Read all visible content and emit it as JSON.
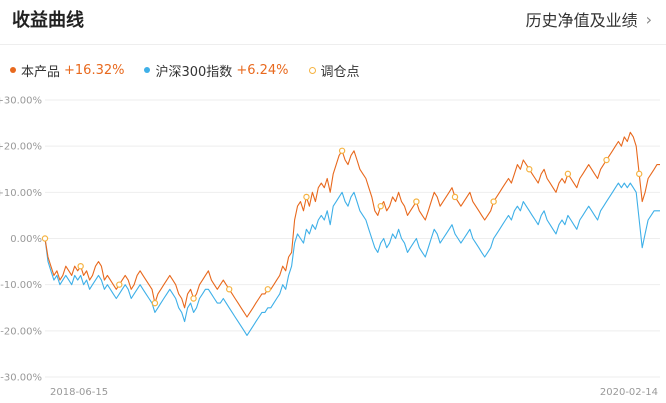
{
  "header": {
    "title": "收益曲线",
    "link_label": "历史净值及业绩"
  },
  "legend": [
    {
      "name": "本产品",
      "value": "+16.32%",
      "color": "#e8691e"
    },
    {
      "name": "沪深300指数",
      "value": "+6.24%",
      "color": "#3fb0e8"
    },
    {
      "name": "调仓点",
      "color": "#f5b342"
    }
  ],
  "chart_data": {
    "type": "line",
    "y_ticks": [
      "+30.00%",
      "+20.00%",
      "+10.00%",
      "0.00%",
      "-10.00%",
      "-20.00%",
      "-30.00%"
    ],
    "ylim": [
      -30,
      30
    ],
    "x_tick_labels": [
      "2018-06-15",
      "2020-02-14"
    ],
    "grid": true,
    "series": [
      {
        "name": "本产品",
        "color": "#e8691e",
        "values": [
          0,
          -4,
          -6,
          -8,
          -7,
          -9,
          -8,
          -6,
          -7,
          -8,
          -6,
          -7,
          -6,
          -8,
          -7,
          -9,
          -8,
          -6,
          -5,
          -6,
          -9,
          -8,
          -9,
          -10,
          -11,
          -10,
          -9,
          -8,
          -9,
          -11,
          -10,
          -8,
          -7,
          -8,
          -9,
          -10,
          -11,
          -14,
          -12,
          -11,
          -10,
          -9,
          -8,
          -9,
          -10,
          -12,
          -13,
          -15,
          -12,
          -11,
          -13,
          -12,
          -10,
          -9,
          -8,
          -7,
          -9,
          -10,
          -11,
          -10,
          -9,
          -10,
          -11,
          -12,
          -13,
          -14,
          -15,
          -16,
          -17,
          -16,
          -15,
          -14,
          -13,
          -12,
          -12,
          -11,
          -11,
          -10,
          -9,
          -8,
          -6,
          -7,
          -4,
          -3,
          4,
          7,
          8,
          6,
          9,
          7,
          10,
          8,
          11,
          12,
          11,
          13,
          10,
          14,
          16,
          18,
          19,
          17,
          16,
          18,
          19,
          17,
          15,
          14,
          13,
          11,
          9,
          6,
          5,
          7,
          8,
          6,
          7,
          9,
          8,
          10,
          8,
          7,
          5,
          6,
          7,
          8,
          6,
          5,
          4,
          6,
          8,
          10,
          9,
          7,
          8,
          9,
          10,
          11,
          9,
          8,
          7,
          8,
          9,
          10,
          8,
          7,
          6,
          5,
          4,
          5,
          6,
          8,
          9,
          10,
          11,
          12,
          13,
          12,
          14,
          16,
          15,
          17,
          16,
          15,
          14,
          13,
          12,
          14,
          15,
          13,
          12,
          11,
          10,
          12,
          13,
          12,
          14,
          13,
          12,
          11,
          13,
          14,
          15,
          16,
          15,
          14,
          13,
          15,
          16,
          17,
          18,
          19,
          20,
          21,
          20,
          22,
          21,
          23,
          22,
          20,
          14,
          8,
          10,
          13,
          14,
          15,
          16,
          16
        ],
        "values_note_unused": ""
      },
      {
        "name": "沪深300指数",
        "color": "#3fb0e8",
        "values": [
          0,
          -5,
          -7,
          -9,
          -8,
          -10,
          -9,
          -8,
          -9,
          -10,
          -8,
          -9,
          -8,
          -10,
          -9,
          -11,
          -10,
          -9,
          -8,
          -9,
          -11,
          -10,
          -11,
          -12,
          -13,
          -12,
          -11,
          -10,
          -11,
          -13,
          -12,
          -11,
          -10,
          -11,
          -12,
          -13,
          -14,
          -16,
          -15,
          -14,
          -13,
          -12,
          -11,
          -12,
          -13,
          -15,
          -16,
          -18,
          -15,
          -14,
          -16,
          -15,
          -13,
          -12,
          -11,
          -11,
          -12,
          -13,
          -14,
          -14,
          -13,
          -14,
          -15,
          -16,
          -17,
          -18,
          -19,
          -20,
          -21,
          -20,
          -19,
          -18,
          -17,
          -16,
          -16,
          -15,
          -15,
          -14,
          -13,
          -12,
          -10,
          -11,
          -8,
          -6,
          -1,
          1,
          0,
          -1,
          2,
          1,
          3,
          2,
          4,
          5,
          4,
          6,
          3,
          7,
          8,
          9,
          10,
          8,
          7,
          9,
          10,
          8,
          6,
          5,
          4,
          2,
          0,
          -2,
          -3,
          -1,
          0,
          -2,
          -1,
          1,
          0,
          2,
          0,
          -1,
          -3,
          -2,
          -1,
          0,
          -2,
          -3,
          -4,
          -2,
          0,
          2,
          1,
          -1,
          0,
          1,
          2,
          3,
          1,
          0,
          -1,
          0,
          1,
          2,
          0,
          -1,
          -2,
          -3,
          -4,
          -3,
          -2,
          0,
          1,
          2,
          3,
          4,
          5,
          4,
          6,
          7,
          6,
          8,
          7,
          6,
          5,
          4,
          3,
          5,
          6,
          4,
          3,
          2,
          1,
          3,
          4,
          3,
          5,
          4,
          3,
          2,
          4,
          5,
          6,
          7,
          6,
          5,
          4,
          6,
          7,
          8,
          9,
          10,
          11,
          12,
          11,
          12,
          11,
          12,
          11,
          10,
          4,
          -2,
          1,
          4,
          5,
          6,
          6,
          6
        ]
      }
    ],
    "rebalance_indices": [
      0,
      12,
      25,
      37,
      50,
      62,
      75,
      88,
      100,
      113,
      125,
      138,
      151,
      163,
      176,
      189,
      200
    ]
  }
}
